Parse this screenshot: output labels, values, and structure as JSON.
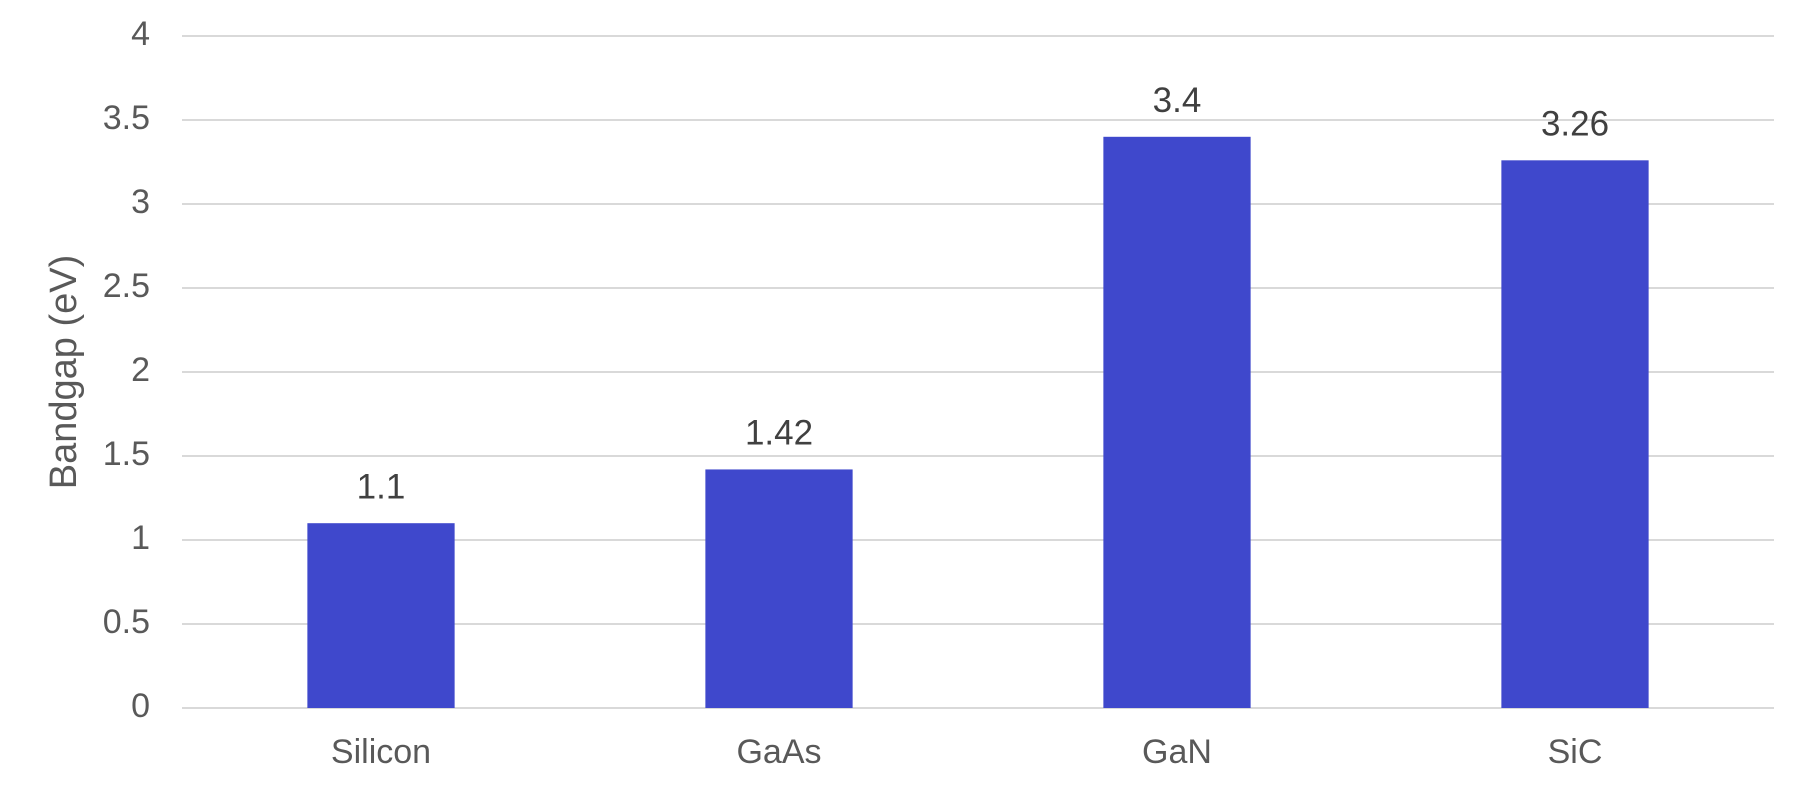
{
  "chart_data": {
    "type": "bar",
    "y_label": "Bandgap (eV)",
    "categories": [
      "Silicon",
      "GaAs",
      "GaN",
      "SiC"
    ],
    "values": [
      1.1,
      1.42,
      3.4,
      3.26
    ],
    "color": "#3f48cc",
    "ylim": [
      0,
      4
    ],
    "yticks": [
      0,
      0.5,
      1,
      1.5,
      2,
      2.5,
      3,
      3.5,
      4
    ],
    "grid": true
  }
}
